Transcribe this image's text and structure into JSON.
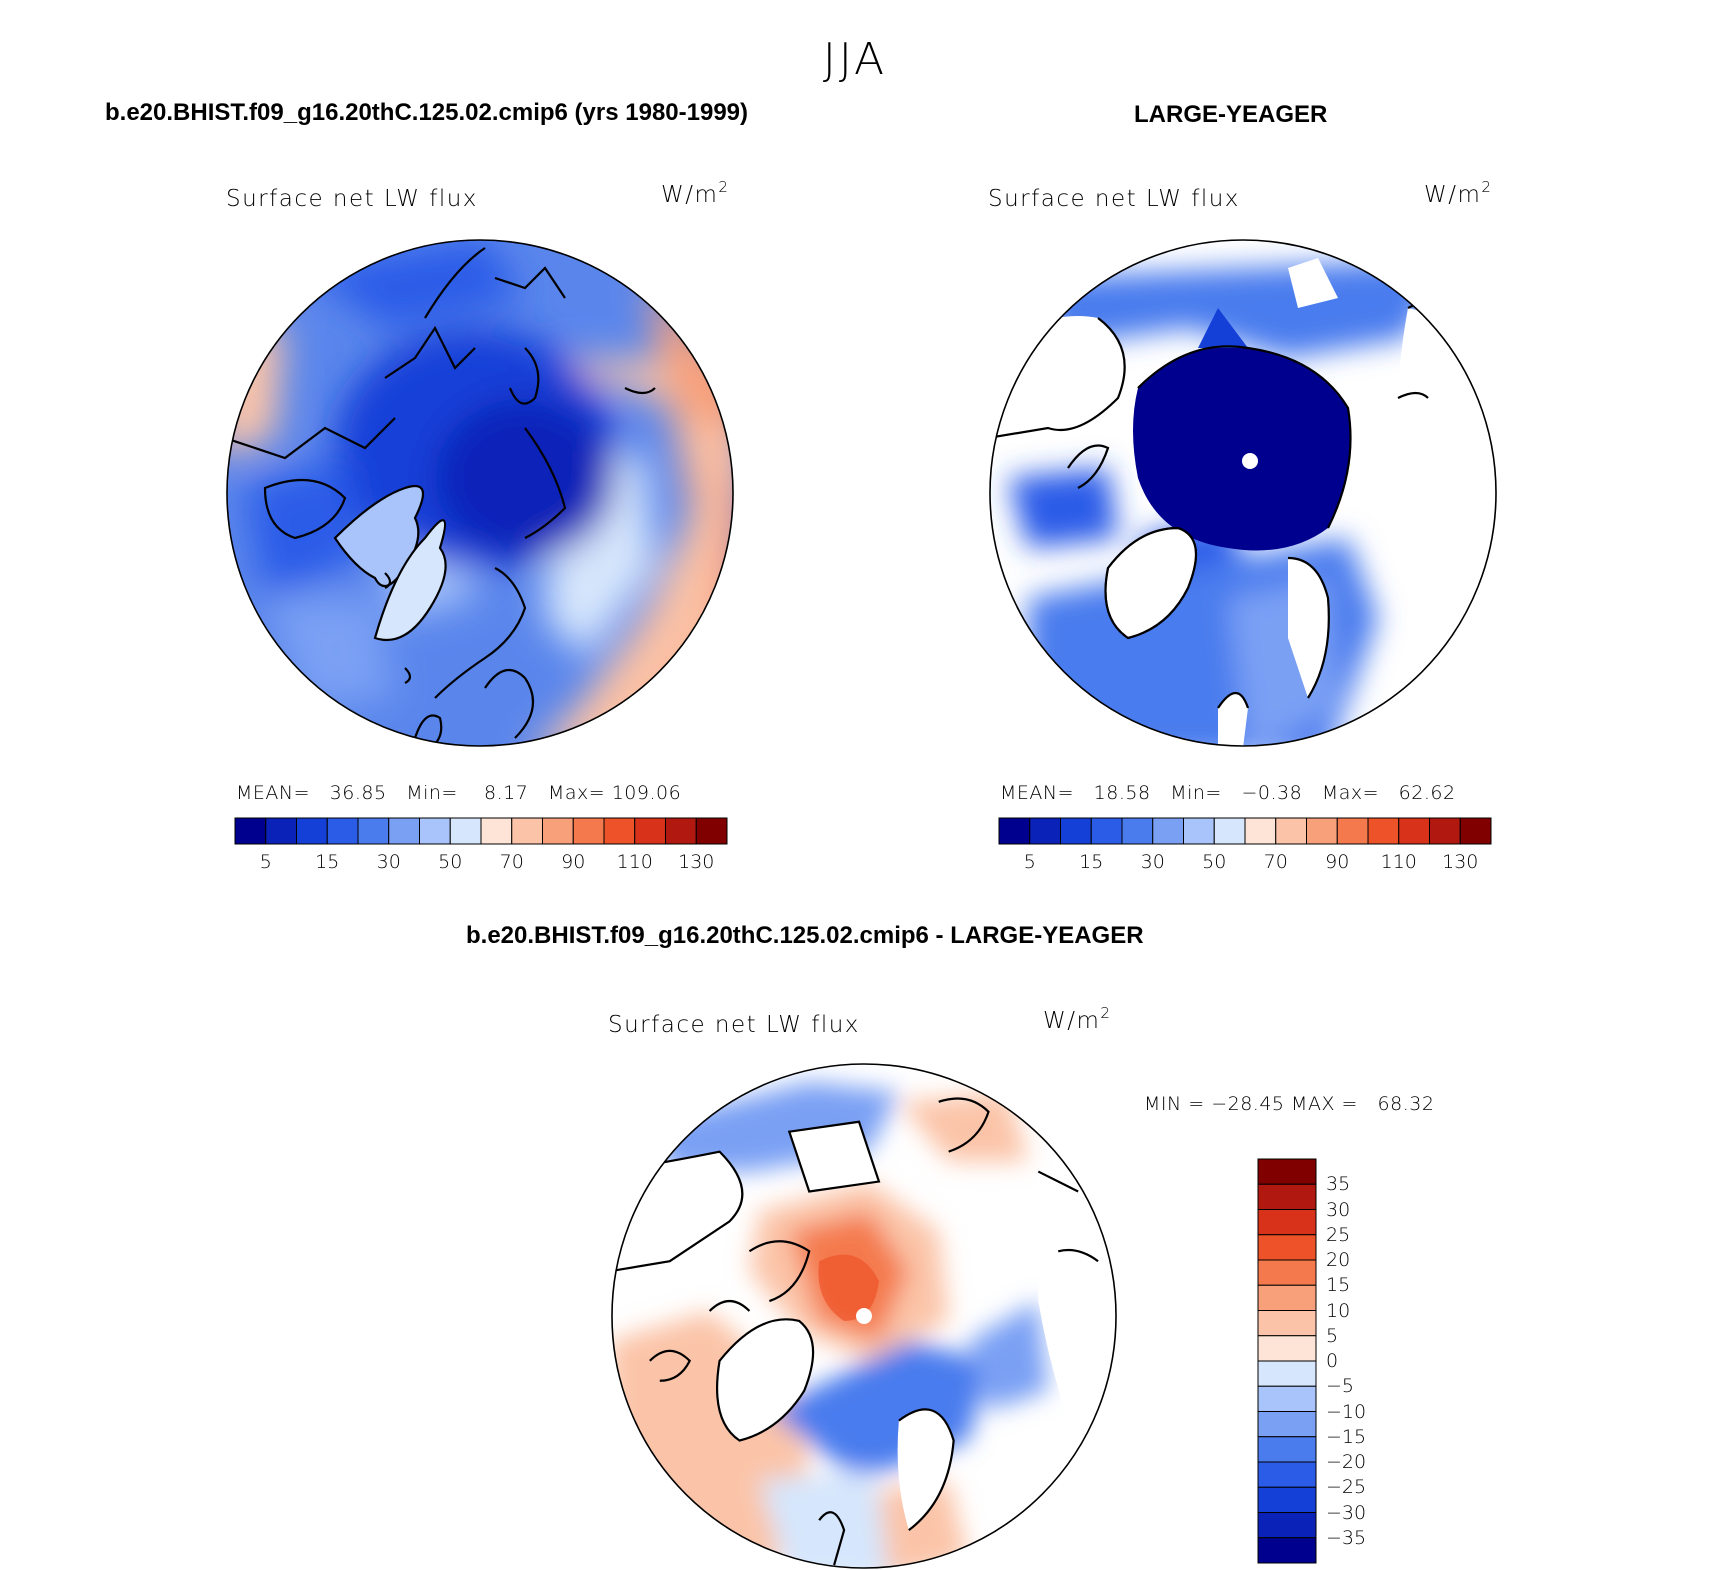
{
  "figure": {
    "season": "JJA",
    "case_title": "b.e20.BHIST.f09_g16.20thC.125.02.cmip6 (yrs 1980-1999)",
    "obs_title": "LARGE-YEAGER",
    "diff_title": "b.e20.BHIST.f09_g16.20thC.125.02.cmip6 - LARGE-YEAGER"
  },
  "panels": {
    "model": {
      "label": "Surface net LW flux",
      "units": "W/m",
      "units_exp": "2",
      "mean_label": "MEAN=",
      "mean": "36.85",
      "min_label": "Min=",
      "min": "8.17",
      "max_label": "Max=",
      "max": "109.06"
    },
    "obs": {
      "label": "Surface net LW flux",
      "units": "W/m",
      "units_exp": "2",
      "mean_label": "MEAN=",
      "mean": "18.58",
      "min_label": "Min=",
      "min": "−0.38",
      "max_label": "Max=",
      "max": "62.62"
    },
    "diff": {
      "label": "Surface net LW flux",
      "units": "W/m",
      "units_exp": "2",
      "minmax_text": "MIN = −28.45 MAX =   68.32"
    }
  },
  "colorbars": {
    "abs_ticks": [
      "5",
      "15",
      "30",
      "50",
      "70",
      "90",
      "110",
      "130"
    ],
    "abs_colors": [
      "#00008f",
      "#0a22b8",
      "#1440d8",
      "#2a5ce8",
      "#4a7cee",
      "#7aa0f4",
      "#a8c4fa",
      "#d6e6fc",
      "#fde4d6",
      "#fbc4a8",
      "#f8a07a",
      "#f47a4e",
      "#ee5228",
      "#d8331a",
      "#b01810",
      "#800000"
    ],
    "diff_ticks": [
      "35",
      "30",
      "25",
      "20",
      "15",
      "10",
      "5",
      "0",
      "−5",
      "−10",
      "−15",
      "−20",
      "−25",
      "−30",
      "−35"
    ],
    "diff_colors": [
      "#800000",
      "#b01810",
      "#d8331a",
      "#ee5228",
      "#f47a4e",
      "#f8a07a",
      "#fbc4a8",
      "#fde4d6",
      "#d6e6fc",
      "#a8c4fa",
      "#7aa0f4",
      "#4a7cee",
      "#2a5ce8",
      "#1440d8",
      "#0a22b8",
      "#00008f"
    ]
  }
}
